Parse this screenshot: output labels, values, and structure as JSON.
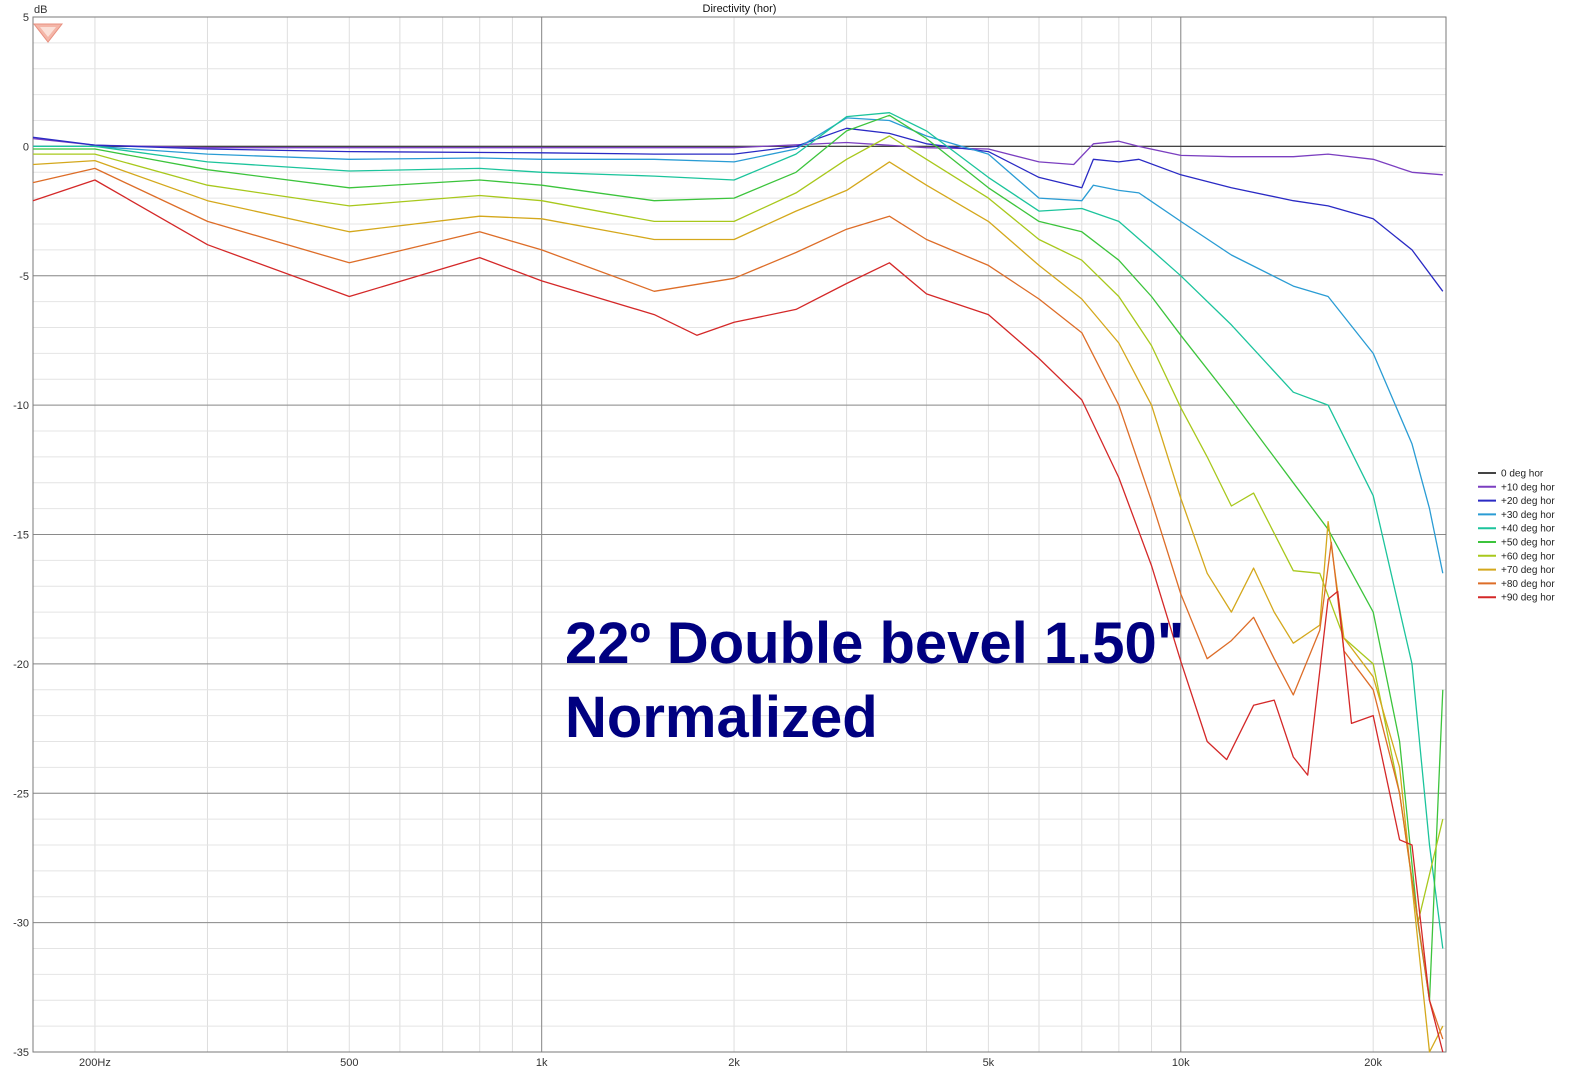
{
  "chart_data": {
    "type": "line",
    "title": "Directivity (hor)",
    "ylabel": "dB",
    "xlabel": "",
    "x_scale": "log",
    "xlim": [
      160,
      26000
    ],
    "ylim": [
      -35,
      5
    ],
    "grid": true,
    "legend_position": "right",
    "x_ticks": [
      {
        "value": 200,
        "label": "200Hz"
      },
      {
        "value": 500,
        "label": "500"
      },
      {
        "value": 1000,
        "label": "1k"
      },
      {
        "value": 2000,
        "label": "2k"
      },
      {
        "value": 5000,
        "label": "5k"
      },
      {
        "value": 10000,
        "label": "10k"
      },
      {
        "value": 20000,
        "label": "20k"
      }
    ],
    "y_ticks": [
      {
        "value": 5,
        "label": "5"
      },
      {
        "value": 0,
        "label": "0"
      },
      {
        "value": -5,
        "label": "-5"
      },
      {
        "value": -10,
        "label": "-10"
      },
      {
        "value": -15,
        "label": "-15"
      },
      {
        "value": -20,
        "label": "-20"
      },
      {
        "value": -25,
        "label": "-25"
      },
      {
        "value": -30,
        "label": "-30"
      },
      {
        "value": -35,
        "label": "-35"
      }
    ],
    "annotation": {
      "line1": "22º Double bevel 1.50\"",
      "line2": "Normalized",
      "color": "#000080"
    },
    "series": [
      {
        "name": "0 deg hor",
        "color": "#444444",
        "points": [
          [
            160,
            0
          ],
          [
            25700,
            0
          ]
        ]
      },
      {
        "name": "+10 deg hor",
        "color": "#7b3fc0",
        "points": [
          [
            160,
            0.3
          ],
          [
            200,
            0.05
          ],
          [
            300,
            -0.05
          ],
          [
            1000,
            -0.05
          ],
          [
            2000,
            -0.05
          ],
          [
            3000,
            0.15
          ],
          [
            4000,
            -0.05
          ],
          [
            5000,
            -0.1
          ],
          [
            6000,
            -0.6
          ],
          [
            6800,
            -0.7
          ],
          [
            7300,
            0.1
          ],
          [
            8000,
            0.2
          ],
          [
            8600,
            0
          ],
          [
            10000,
            -0.35
          ],
          [
            12000,
            -0.4
          ],
          [
            15000,
            -0.4
          ],
          [
            17000,
            -0.3
          ],
          [
            20000,
            -0.5
          ],
          [
            23000,
            -1
          ],
          [
            25700,
            -1.1
          ]
        ]
      },
      {
        "name": "+20 deg hor",
        "color": "#2a2ac4",
        "points": [
          [
            160,
            0.35
          ],
          [
            200,
            0.05
          ],
          [
            300,
            -0.1
          ],
          [
            500,
            -0.2
          ],
          [
            1000,
            -0.25
          ],
          [
            1500,
            -0.3
          ],
          [
            2000,
            -0.3
          ],
          [
            2500,
            0
          ],
          [
            3000,
            0.7
          ],
          [
            3500,
            0.5
          ],
          [
            4000,
            0.1
          ],
          [
            5000,
            -0.2
          ],
          [
            6000,
            -1.2
          ],
          [
            7000,
            -1.6
          ],
          [
            7300,
            -0.5
          ],
          [
            8000,
            -0.6
          ],
          [
            8600,
            -0.5
          ],
          [
            10000,
            -1.1
          ],
          [
            12000,
            -1.6
          ],
          [
            15000,
            -2.1
          ],
          [
            17000,
            -2.3
          ],
          [
            20000,
            -2.8
          ],
          [
            23000,
            -4
          ],
          [
            25700,
            -5.6
          ]
        ]
      },
      {
        "name": "+30 deg hor",
        "color": "#2a9cd4",
        "points": [
          [
            160,
            0
          ],
          [
            200,
            0
          ],
          [
            300,
            -0.3
          ],
          [
            500,
            -0.5
          ],
          [
            800,
            -0.45
          ],
          [
            1000,
            -0.5
          ],
          [
            1500,
            -0.5
          ],
          [
            2000,
            -0.6
          ],
          [
            2500,
            -0.1
          ],
          [
            3000,
            1.1
          ],
          [
            3500,
            1
          ],
          [
            4000,
            0.4
          ],
          [
            5000,
            -0.3
          ],
          [
            6000,
            -2
          ],
          [
            7000,
            -2.1
          ],
          [
            7300,
            -1.5
          ],
          [
            8000,
            -1.7
          ],
          [
            8600,
            -1.8
          ],
          [
            10000,
            -2.9
          ],
          [
            12000,
            -4.2
          ],
          [
            15000,
            -5.4
          ],
          [
            17000,
            -5.8
          ],
          [
            20000,
            -8
          ],
          [
            23000,
            -11.5
          ],
          [
            24500,
            -14
          ],
          [
            25700,
            -16.5
          ]
        ]
      },
      {
        "name": "+40 deg hor",
        "color": "#1cc49c",
        "points": [
          [
            160,
            0
          ],
          [
            200,
            0
          ],
          [
            300,
            -0.6
          ],
          [
            500,
            -0.95
          ],
          [
            800,
            -0.85
          ],
          [
            1000,
            -1
          ],
          [
            1500,
            -1.15
          ],
          [
            2000,
            -1.3
          ],
          [
            2500,
            -0.3
          ],
          [
            3000,
            1.15
          ],
          [
            3500,
            1.3
          ],
          [
            4000,
            0.6
          ],
          [
            5000,
            -1.2
          ],
          [
            6000,
            -2.5
          ],
          [
            7000,
            -2.4
          ],
          [
            8000,
            -2.9
          ],
          [
            9000,
            -4
          ],
          [
            10000,
            -5
          ],
          [
            12000,
            -6.9
          ],
          [
            15000,
            -9.5
          ],
          [
            17000,
            -10
          ],
          [
            20000,
            -13.5
          ],
          [
            23000,
            -20
          ],
          [
            24500,
            -27
          ],
          [
            25700,
            -31
          ]
        ]
      },
      {
        "name": "+50 deg hor",
        "color": "#3cc43c",
        "points": [
          [
            160,
            -0.1
          ],
          [
            200,
            -0.1
          ],
          [
            300,
            -0.9
          ],
          [
            500,
            -1.6
          ],
          [
            800,
            -1.3
          ],
          [
            1000,
            -1.5
          ],
          [
            1500,
            -2.1
          ],
          [
            2000,
            -2.0
          ],
          [
            2500,
            -1
          ],
          [
            3000,
            0.6
          ],
          [
            3500,
            1.2
          ],
          [
            4000,
            0.3
          ],
          [
            5000,
            -1.6
          ],
          [
            6000,
            -2.9
          ],
          [
            7000,
            -3.3
          ],
          [
            8000,
            -4.4
          ],
          [
            9000,
            -5.8
          ],
          [
            10000,
            -7.3
          ],
          [
            12000,
            -9.8
          ],
          [
            15000,
            -13
          ],
          [
            17000,
            -14.8
          ],
          [
            20000,
            -18
          ],
          [
            22000,
            -23
          ],
          [
            23500,
            -30
          ],
          [
            24500,
            -33
          ],
          [
            25700,
            -21
          ]
        ]
      },
      {
        "name": "+60 deg hor",
        "color": "#a8c81c",
        "points": [
          [
            160,
            -0.3
          ],
          [
            200,
            -0.3
          ],
          [
            300,
            -1.5
          ],
          [
            500,
            -2.3
          ],
          [
            800,
            -1.9
          ],
          [
            1000,
            -2.1
          ],
          [
            1500,
            -2.9
          ],
          [
            2000,
            -2.9
          ],
          [
            2500,
            -1.8
          ],
          [
            3000,
            -0.5
          ],
          [
            3500,
            0.4
          ],
          [
            4000,
            -0.5
          ],
          [
            5000,
            -2
          ],
          [
            6000,
            -3.6
          ],
          [
            7000,
            -4.4
          ],
          [
            8000,
            -5.8
          ],
          [
            9000,
            -7.7
          ],
          [
            10000,
            -10.1
          ],
          [
            11000,
            -12
          ],
          [
            12000,
            -13.9
          ],
          [
            13000,
            -13.4
          ],
          [
            15000,
            -16.4
          ],
          [
            16500,
            -16.5
          ],
          [
            18000,
            -19
          ],
          [
            20000,
            -20
          ],
          [
            22000,
            -25
          ],
          [
            23500,
            -30
          ],
          [
            25700,
            -26
          ]
        ]
      },
      {
        "name": "+70 deg hor",
        "color": "#d4a81c",
        "points": [
          [
            160,
            -0.7
          ],
          [
            200,
            -0.55
          ],
          [
            300,
            -2.1
          ],
          [
            500,
            -3.3
          ],
          [
            800,
            -2.7
          ],
          [
            1000,
            -2.8
          ],
          [
            1500,
            -3.6
          ],
          [
            2000,
            -3.6
          ],
          [
            2500,
            -2.5
          ],
          [
            3000,
            -1.7
          ],
          [
            3500,
            -0.6
          ],
          [
            4000,
            -1.5
          ],
          [
            5000,
            -2.9
          ],
          [
            6000,
            -4.6
          ],
          [
            7000,
            -5.9
          ],
          [
            8000,
            -7.6
          ],
          [
            9000,
            -10
          ],
          [
            10000,
            -13.6
          ],
          [
            11000,
            -16.5
          ],
          [
            12000,
            -18
          ],
          [
            13000,
            -16.3
          ],
          [
            14000,
            -18
          ],
          [
            15000,
            -19.2
          ],
          [
            16500,
            -18.5
          ],
          [
            17000,
            -14.5
          ],
          [
            18000,
            -19
          ],
          [
            20000,
            -20.5
          ],
          [
            22000,
            -24
          ],
          [
            24500,
            -35
          ],
          [
            25700,
            -34
          ]
        ]
      },
      {
        "name": "+80 deg hor",
        "color": "#dd6d28",
        "points": [
          [
            160,
            -1.4
          ],
          [
            200,
            -0.85
          ],
          [
            300,
            -2.9
          ],
          [
            500,
            -4.5
          ],
          [
            800,
            -3.3
          ],
          [
            1000,
            -4
          ],
          [
            1500,
            -5.6
          ],
          [
            2000,
            -5.1
          ],
          [
            2500,
            -4.1
          ],
          [
            3000,
            -3.2
          ],
          [
            3500,
            -2.7
          ],
          [
            4000,
            -3.6
          ],
          [
            5000,
            -4.6
          ],
          [
            6000,
            -5.9
          ],
          [
            7000,
            -7.2
          ],
          [
            8000,
            -10
          ],
          [
            9000,
            -13.7
          ],
          [
            10000,
            -17.3
          ],
          [
            11000,
            -19.8
          ],
          [
            12000,
            -19.1
          ],
          [
            13000,
            -18.2
          ],
          [
            14000,
            -19.8
          ],
          [
            15000,
            -21.2
          ],
          [
            16500,
            -18.7
          ],
          [
            17200,
            -15.3
          ],
          [
            18000,
            -19.5
          ],
          [
            20000,
            -21
          ],
          [
            22000,
            -25
          ],
          [
            24500,
            -33
          ],
          [
            25700,
            -34.5
          ]
        ]
      },
      {
        "name": "+90 deg hor",
        "color": "#d42828",
        "points": [
          [
            160,
            -2.1
          ],
          [
            200,
            -1.3
          ],
          [
            300,
            -3.8
          ],
          [
            500,
            -5.8
          ],
          [
            800,
            -4.3
          ],
          [
            1000,
            -5.2
          ],
          [
            1500,
            -6.5
          ],
          [
            1750,
            -7.3
          ],
          [
            2000,
            -6.8
          ],
          [
            2500,
            -6.3
          ],
          [
            3000,
            -5.3
          ],
          [
            3500,
            -4.5
          ],
          [
            4000,
            -5.7
          ],
          [
            5000,
            -6.5
          ],
          [
            6000,
            -8.2
          ],
          [
            7000,
            -9.8
          ],
          [
            8000,
            -12.8
          ],
          [
            9000,
            -16.2
          ],
          [
            10000,
            -19.9
          ],
          [
            11000,
            -23
          ],
          [
            11800,
            -23.7
          ],
          [
            13000,
            -21.6
          ],
          [
            14000,
            -21.4
          ],
          [
            15000,
            -23.6
          ],
          [
            15800,
            -24.3
          ],
          [
            17000,
            -17.5
          ],
          [
            17600,
            -17.2
          ],
          [
            18500,
            -22.3
          ],
          [
            20000,
            -22
          ],
          [
            22000,
            -26.8
          ],
          [
            23000,
            -27
          ],
          [
            24500,
            -33
          ],
          [
            25700,
            -35
          ]
        ]
      }
    ]
  }
}
